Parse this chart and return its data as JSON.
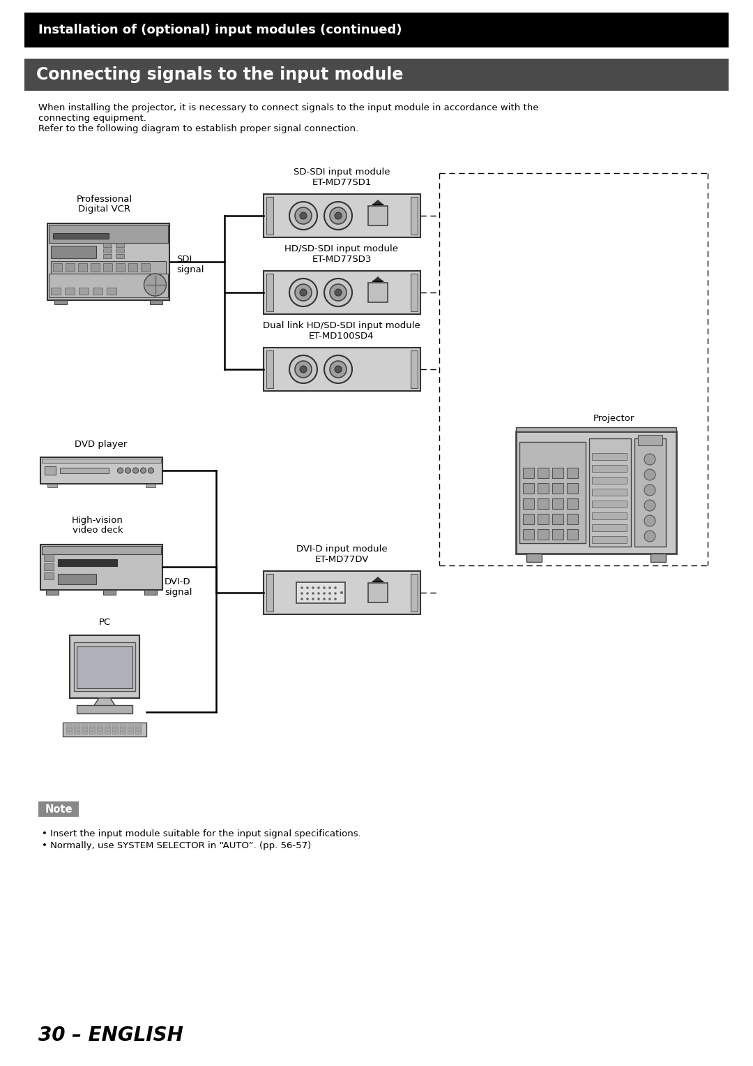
{
  "bg_color": "#ffffff",
  "header_bar_color": "#000000",
  "header_bar_text": "Installation of (optional) input modules (continued)",
  "header_bar_text_color": "#ffffff",
  "section_bar_color": "#555555",
  "section_bar_text": "Connecting signals to the input module",
  "section_bar_text_color": "#ffffff",
  "body_text_line1": "When installing the projector, it is necessary to connect signals to the input module in accordance with the",
  "body_text_line2": "connecting equipment.",
  "body_text_line3": "Refer to the following diagram to establish proper signal connection.",
  "note_label": "Note",
  "note_bullet1": "Insert the input module suitable for the input signal specifications.",
  "note_bullet2": "Normally, use SYSTEM SELECTOR in “AUTO”. (pp. 56-57)",
  "page_number": "30 – ENGLISH",
  "module_labels": [
    [
      "SD-SDI input module",
      "ET-MD77SD1"
    ],
    [
      "HD/SD-SDI input module",
      "ET-MD77SD3"
    ],
    [
      "Dual link HD/SD-SDI input module",
      "ET-MD100SD4"
    ],
    [
      "DVI-D input module",
      "ET-MD77DV"
    ]
  ]
}
